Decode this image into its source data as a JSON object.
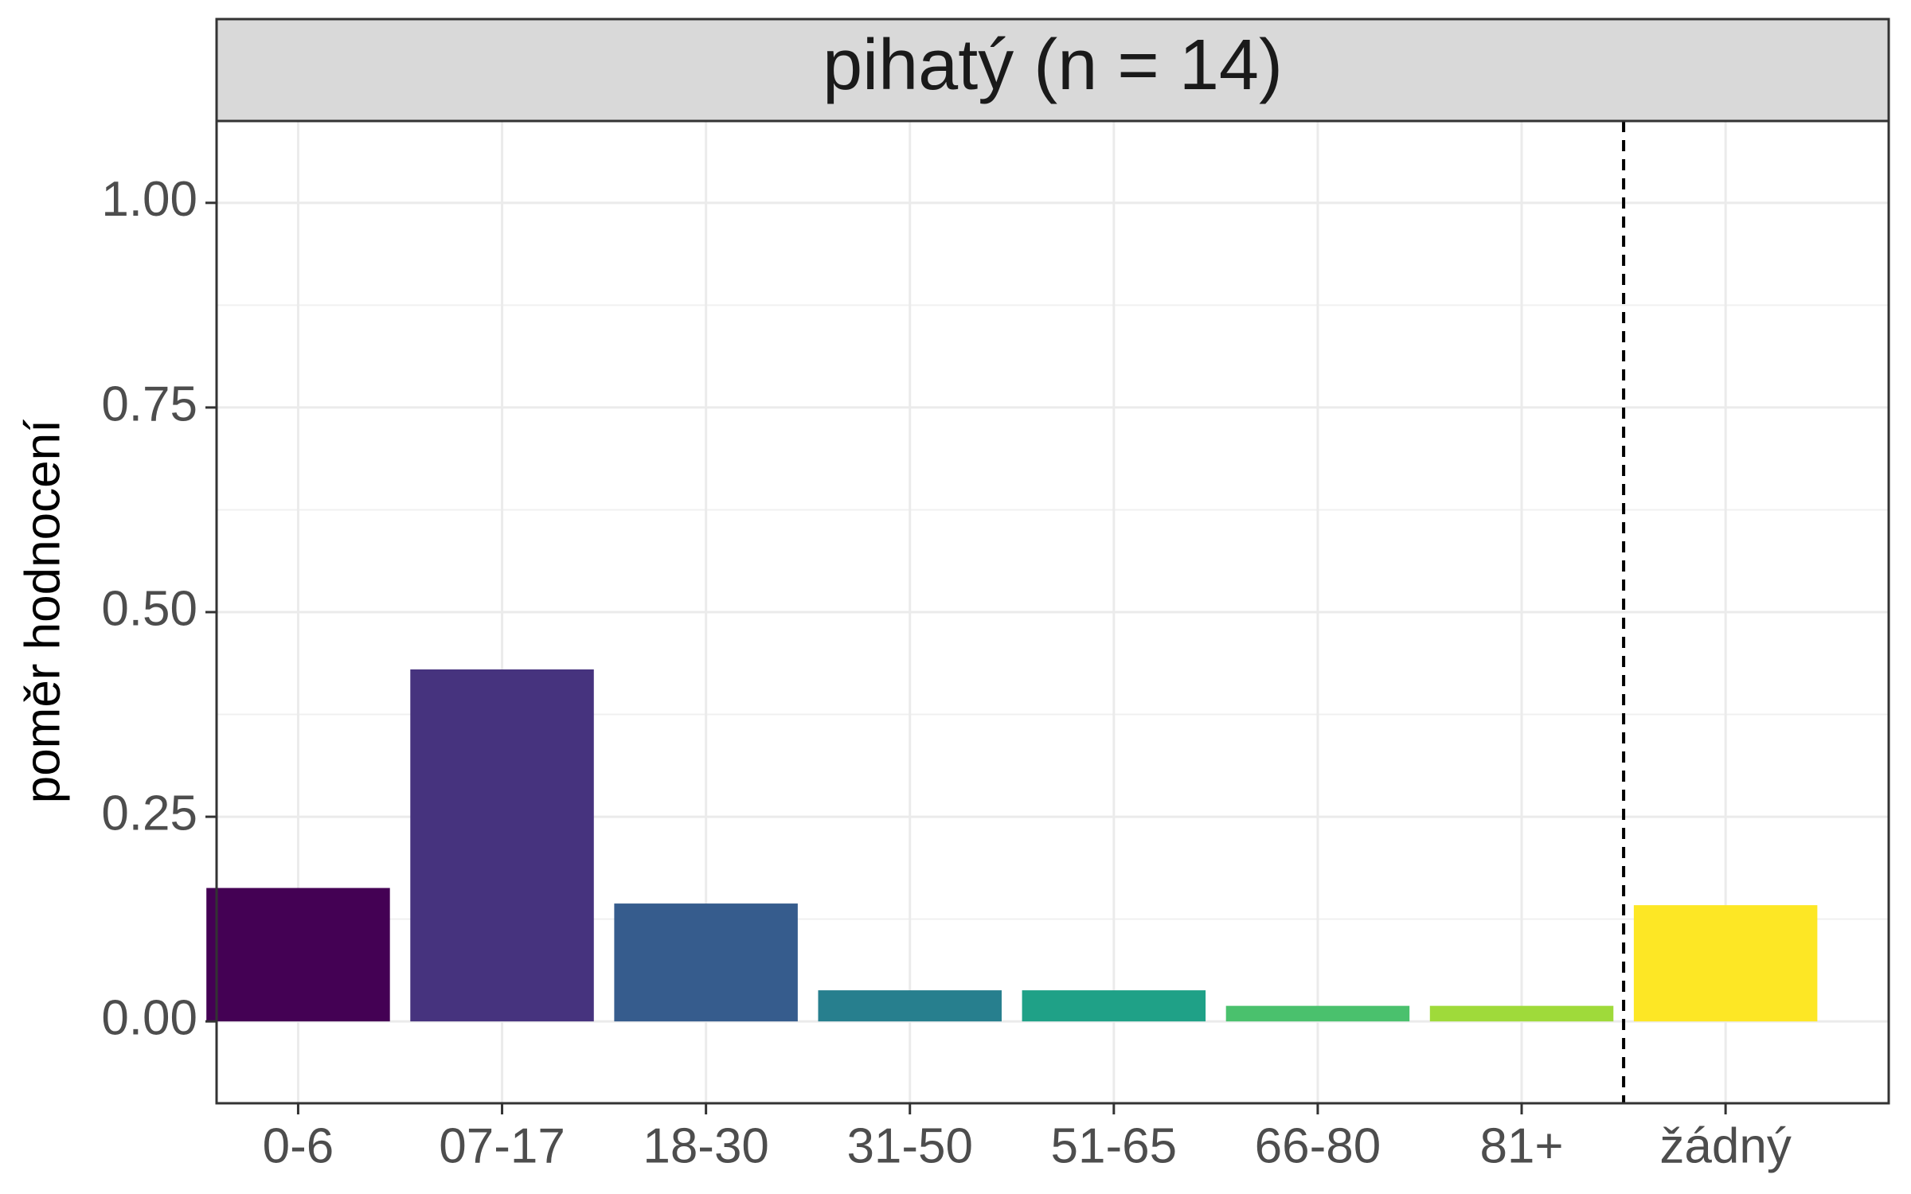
{
  "chart_data": {
    "type": "bar",
    "title": "pihatý (n = 14)",
    "xlabel": "",
    "ylabel": "poměr hodnocení",
    "ylim": [
      -0.1,
      1.1
    ],
    "yticks": [
      "0.00",
      "0.25",
      "0.50",
      "0.75",
      "1.00"
    ],
    "ytick_values": [
      0,
      0.25,
      0.5,
      0.75,
      1.0
    ],
    "categories": [
      "0-6",
      "07-17",
      "18-30",
      "31-50",
      "51-65",
      "66-80",
      "81+",
      "žádný"
    ],
    "values": [
      0.163,
      0.43,
      0.144,
      0.038,
      0.038,
      0.019,
      0.019,
      0.142
    ],
    "colors": [
      "#440154",
      "#46337E",
      "#365C8D",
      "#277F8E",
      "#1FA187",
      "#4AC16D",
      "#9FDA3A",
      "#FDE725"
    ],
    "separator_after_index": 6,
    "grid": true,
    "legend": "none"
  }
}
